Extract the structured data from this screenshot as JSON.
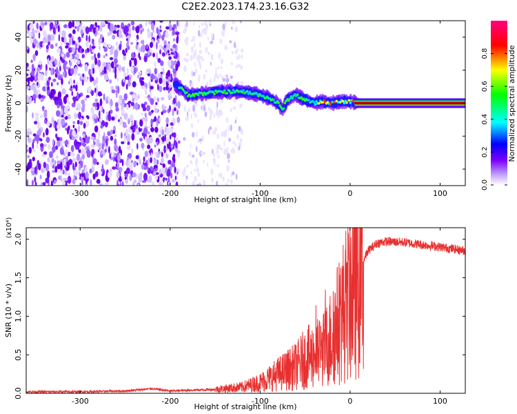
{
  "title": "C2E2.2023.174.23.16.G32",
  "chart_data": [
    {
      "type": "heatmap",
      "xlabel": "Height of straight line (km)",
      "ylabel": "Frequency (Hz)",
      "xlim": [
        -360,
        128
      ],
      "ylim": [
        -50,
        50
      ],
      "xticks": [
        -300,
        -200,
        -100,
        0,
        100
      ],
      "yticks": [
        -40,
        -20,
        0,
        20,
        40
      ],
      "colorbar": {
        "label": "Normalized spectral amplitude",
        "range": [
          0,
          1
        ],
        "ticks": [
          0.0,
          0.2,
          0.4,
          0.6,
          0.8
        ],
        "colors": [
          "#ffffff",
          "#c3a6ff",
          "#7a00ff",
          "#0000ff",
          "#00ffff",
          "#00ff00",
          "#ffff00",
          "#ff0000",
          "#ff0080"
        ]
      },
      "regions": [
        {
          "name": "noise",
          "x": [
            -360,
            -190
          ],
          "freq_range": [
            -50,
            50
          ],
          "amplitude_range": [
            0.02,
            0.15
          ]
        },
        {
          "name": "sparse",
          "x": [
            -185,
            -120
          ],
          "freq_range": [
            -50,
            50
          ],
          "amplitude_range": [
            0.0,
            0.05
          ]
        },
        {
          "name": "signal",
          "freq_trace": [
            [
              -195,
              12
            ],
            [
              -180,
              5
            ],
            [
              -160,
              6
            ],
            [
              -140,
              7
            ],
            [
              -120,
              7
            ],
            [
              -100,
              5
            ],
            [
              -90,
              3
            ],
            [
              -80,
              0
            ],
            [
              -75,
              -4
            ],
            [
              -70,
              2
            ],
            [
              -60,
              5
            ],
            [
              -50,
              2
            ],
            [
              -40,
              0
            ],
            [
              -30,
              1
            ],
            [
              -20,
              0
            ],
            [
              -10,
              1
            ],
            [
              0,
              1
            ],
            [
              10,
              0
            ],
            [
              128,
              0
            ]
          ]
        }
      ]
    },
    {
      "type": "line",
      "xlabel": "Height of straight line (km)",
      "ylabel": "SNR (10 * v/v)",
      "yscale_label": "(x10⁴)",
      "xlim": [
        -360,
        128
      ],
      "ylim": [
        0,
        2.15
      ],
      "xticks": [
        -300,
        -200,
        -100,
        0,
        100
      ],
      "yticks": [
        0.0,
        0.5,
        1.0,
        1.5,
        2.0
      ],
      "color": "#e83030",
      "series": [
        {
          "x": [
            -360,
            -300,
            -250,
            -220,
            -200,
            -180,
            -150,
            -120,
            -100,
            -80,
            -60,
            -50,
            -40,
            -30,
            -20,
            -10,
            0,
            10,
            20,
            30,
            40,
            60,
            80,
            100,
            128
          ],
          "y": [
            0.02,
            0.02,
            0.03,
            0.06,
            0.03,
            0.04,
            0.05,
            0.08,
            0.14,
            0.25,
            0.35,
            0.45,
            0.5,
            0.55,
            0.75,
            1.0,
            1.3,
            1.6,
            1.85,
            1.95,
            1.97,
            1.96,
            1.93,
            1.9,
            1.85
          ]
        }
      ]
    }
  ]
}
